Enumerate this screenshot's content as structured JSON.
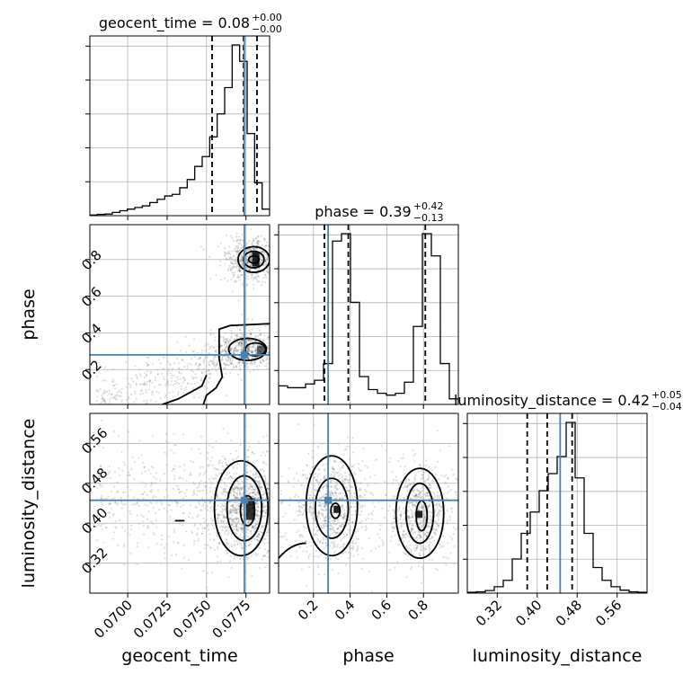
{
  "chart_data": {
    "type": "corner",
    "parameters": [
      "geocent_time",
      "phase",
      "luminosity_distance"
    ],
    "truths": {
      "geocent_time": 0.0774,
      "phase": 0.28,
      "luminosity_distance": 0.446
    },
    "titles": [
      {
        "name": "geocent_time",
        "value": "0.08",
        "plus": "+0.00",
        "minus": "−0.00"
      },
      {
        "name": "phase",
        "value": "0.39",
        "plus": "+0.42",
        "minus": "−0.13"
      },
      {
        "name": "luminosity_distance",
        "value": "0.42",
        "plus": "+0.05",
        "minus": "−0.04"
      }
    ],
    "ranges": {
      "geocent_time": [
        0.0676,
        0.079
      ],
      "phase": [
        0.01,
        0.99
      ],
      "luminosity_distance": [
        0.26,
        0.62
      ]
    },
    "ticks": {
      "geocent_time": [
        0.07,
        0.0725,
        0.075,
        0.0775
      ],
      "geocent_time_labels": [
        "0.0700",
        "0.0725",
        "0.0750",
        "0.0775"
      ],
      "phase": [
        0.2,
        0.4,
        0.6,
        0.8
      ],
      "phase_labels": [
        "0.2",
        "0.4",
        "0.6",
        "0.8"
      ],
      "luminosity_distance": [
        0.32,
        0.4,
        0.48,
        0.56
      ],
      "luminosity_distance_labels": [
        "0.32",
        "0.40",
        "0.48",
        "0.56"
      ]
    },
    "quantiles": {
      "geocent_time": [
        0.07535,
        0.07735,
        0.0782
      ],
      "phase": [
        0.26,
        0.39,
        0.81
      ],
      "luminosity_distance": [
        0.38,
        0.42,
        0.47
      ]
    },
    "hist_geocent_time": [
      0.2,
      0.4,
      0.5,
      1,
      1.5,
      2,
      2.5,
      3,
      4,
      5,
      6,
      6.5,
      8.5,
      11,
      15,
      18,
      24,
      31,
      39,
      52,
      47,
      25,
      10,
      2
    ],
    "hist_phase": [
      10,
      9,
      9,
      11,
      13,
      22,
      88,
      92,
      55,
      15,
      8,
      6,
      5,
      6,
      12,
      42,
      92,
      80,
      22,
      3
    ],
    "hist_luminosity_distance": [
      0.2,
      0.3,
      0.6,
      1.5,
      3,
      8,
      14,
      19,
      24,
      28,
      32,
      40,
      27,
      14,
      6,
      3,
      1.5,
      0.7,
      0.3,
      0.2
    ],
    "grid": true
  }
}
